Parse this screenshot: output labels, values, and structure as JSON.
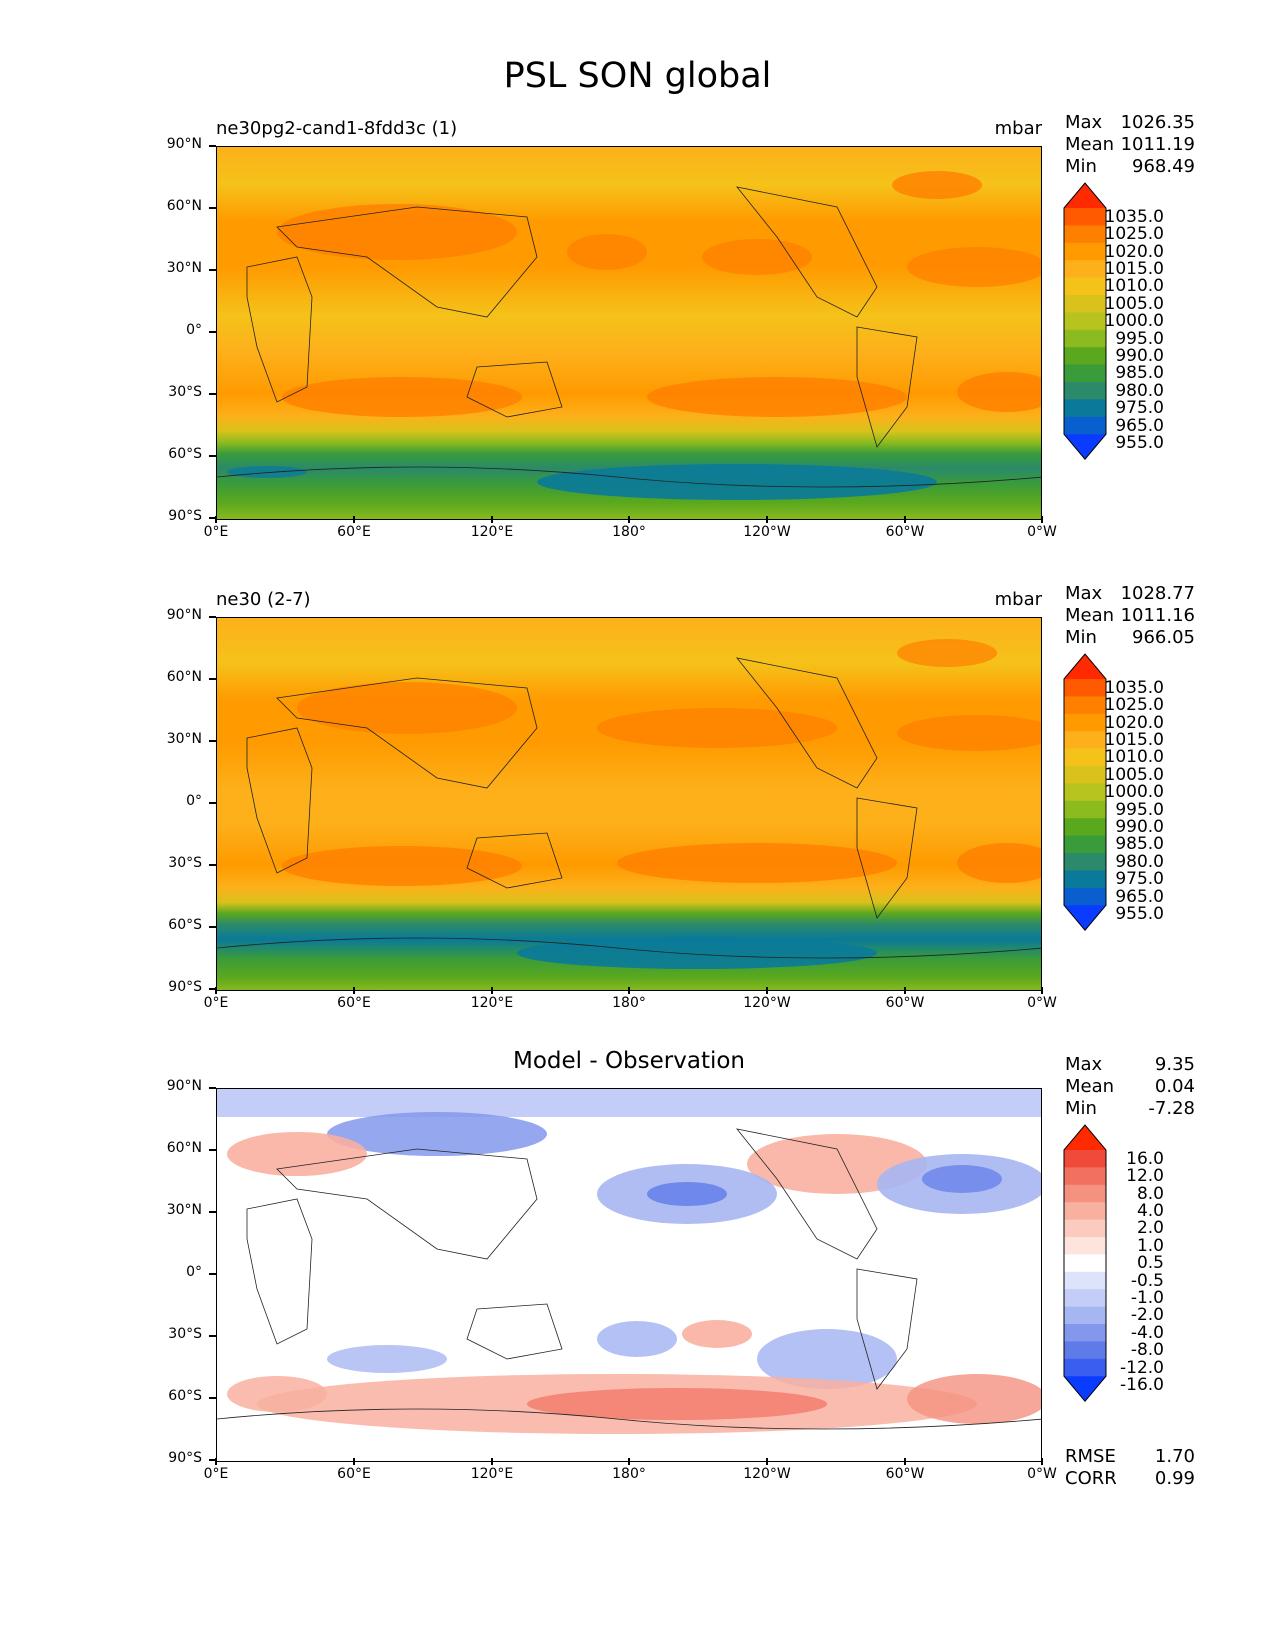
{
  "figure_title": "PSL SON global",
  "x_ticks": [
    "0°E",
    "60°E",
    "120°E",
    "180°",
    "120°W",
    "60°W",
    "0°W"
  ],
  "y_ticks": [
    "90°N",
    "60°N",
    "30°N",
    "0°",
    "30°S",
    "60°S",
    "90°S"
  ],
  "panels": [
    {
      "id": "test",
      "left_title": "ne30pg2-cand1-8fdd3c (1)",
      "right_title": "mbar",
      "stats": {
        "max_label": "Max",
        "max": "1026.35",
        "mean_label": "Mean",
        "mean": "1011.19",
        "min_label": "Min",
        "min": "968.49"
      },
      "colorbar_levels": [
        "1035.0",
        "1025.0",
        "1020.0",
        "1015.0",
        "1010.0",
        "1005.0",
        "1000.0",
        "995.0",
        "990.0",
        "985.0",
        "980.0",
        "975.0",
        "965.0",
        "955.0"
      ],
      "colorbar_colors": [
        "#ff2a00",
        "#ff5a00",
        "#ff7f00",
        "#ff9a00",
        "#fdb01a",
        "#f5c21a",
        "#d9c21c",
        "#b7c41f",
        "#8cbb1f",
        "#5aa81e",
        "#3a9b3a",
        "#2a8a6a",
        "#0a7a9a",
        "#0a5fcf",
        "#0a3cff"
      ],
      "bands_left_to_right_latitude": "high north yellow-orange, subtropical highs orange, equator yellow, southern subtropics orange, southern ocean green-blue, antarctica blue-green"
    },
    {
      "id": "reference",
      "left_title": "ne30 (2-7)",
      "right_title": "mbar",
      "stats": {
        "max_label": "Max",
        "max": "1028.77",
        "mean_label": "Mean",
        "mean": "1011.16",
        "min_label": "Min",
        "min": "966.05"
      },
      "colorbar_levels": [
        "1035.0",
        "1025.0",
        "1020.0",
        "1015.0",
        "1010.0",
        "1005.0",
        "1000.0",
        "995.0",
        "990.0",
        "985.0",
        "980.0",
        "975.0",
        "965.0",
        "955.0"
      ],
      "colorbar_colors": [
        "#ff2a00",
        "#ff5a00",
        "#ff7f00",
        "#ff9a00",
        "#fdb01a",
        "#f5c21a",
        "#d9c21c",
        "#b7c41f",
        "#8cbb1f",
        "#5aa81e",
        "#3a9b3a",
        "#2a8a6a",
        "#0a7a9a",
        "#0a5fcf",
        "#0a3cff"
      ]
    },
    {
      "id": "diff",
      "center_title": "Model - Observation",
      "stats": {
        "max_label": "Max",
        "max": "9.35",
        "mean_label": "Mean",
        "mean": "0.04",
        "min_label": "Min",
        "min": "-7.28"
      },
      "colorbar_levels": [
        "16.0",
        "12.0",
        "8.0",
        "4.0",
        "2.0",
        "1.0",
        "0.5",
        "-0.5",
        "-1.0",
        "-2.0",
        "-4.0",
        "-8.0",
        "-12.0",
        "-16.0"
      ],
      "colorbar_colors": [
        "#ff2a00",
        "#f04a3a",
        "#f2705f",
        "#f5917f",
        "#f8b0a0",
        "#fbcbbf",
        "#fde4dc",
        "#ffffff",
        "#dde3fb",
        "#c3cdf7",
        "#a6b6f2",
        "#8398ec",
        "#5f7be8",
        "#3a5ff0",
        "#0a3cff"
      ],
      "rmse_label": "RMSE",
      "rmse": "1.70",
      "corr_label": "CORR",
      "corr": "0.99"
    }
  ],
  "chart_data": {
    "type": "heatmap",
    "title": "PSL SON global",
    "variable": "PSL",
    "units": "mbar",
    "xlim": [
      0,
      360
    ],
    "ylim": [
      -90,
      90
    ],
    "panels": [
      {
        "name": "ne30pg2-cand1-8fdd3c (1)",
        "max": 1026.35,
        "mean": 1011.19,
        "min": 968.49
      },
      {
        "name": "ne30 (2-7)",
        "max": 1028.77,
        "mean": 1011.16,
        "min": 966.05
      },
      {
        "name": "Model - Observation",
        "max": 9.35,
        "mean": 0.04,
        "min": -7.28,
        "rmse": 1.7,
        "corr": 0.99
      }
    ]
  }
}
